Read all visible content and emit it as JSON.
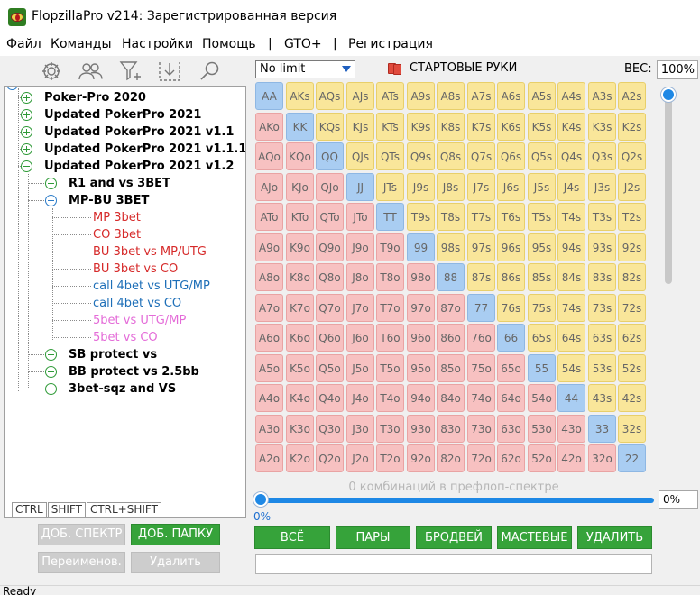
{
  "window": {
    "title": "FlopzillaPro v214: Зарегистрированная версия"
  },
  "menu": [
    "Файл",
    "Команды",
    "Настройки",
    "Помощь",
    "|",
    "GTO+",
    "|",
    "Регистрация"
  ],
  "toolbar_icons": [
    "gear-icon",
    "users-icon",
    "filter-add-icon",
    "import-icon",
    "search-icon"
  ],
  "tree": [
    {
      "label": "Poker-Pro 2020",
      "style": "bold",
      "expander": "plus"
    },
    {
      "label": "Updated PokerPro 2021",
      "style": "bold",
      "expander": "plus"
    },
    {
      "label": "Updated PokerPro 2021 v1.1",
      "style": "bold",
      "expander": "plus"
    },
    {
      "label": "Updated PokerPro 2021 v1.1.1",
      "style": "bold",
      "expander": "plus"
    },
    {
      "label": "Updated PokerPro 2021 v1.2",
      "style": "bold",
      "expander": "minus"
    },
    {
      "label": "R1 and vs 3BET",
      "style": "bold",
      "expander": "plus"
    },
    {
      "label": "MP-BU 3BET",
      "style": "bold",
      "expander": "minus"
    },
    {
      "label": "MP 3bet",
      "style": "red"
    },
    {
      "label": "CO 3bet",
      "style": "red"
    },
    {
      "label": "BU 3bet vs MP/UTG",
      "style": "red"
    },
    {
      "label": "BU 3bet vs CO",
      "style": "red"
    },
    {
      "label": "call 4bet vs UTG/MP",
      "style": "blue"
    },
    {
      "label": "call 4bet vs CO",
      "style": "blue"
    },
    {
      "label": "5bet vs UTG/MP",
      "style": "pink"
    },
    {
      "label": "5bet vs CO",
      "style": "pink"
    },
    {
      "label": "SB protect vs",
      "style": "bold",
      "expander": "plus"
    },
    {
      "label": "BB protect vs 2.5bb",
      "style": "bold",
      "expander": "plus"
    },
    {
      "label": "3bet-sqz and VS",
      "style": "bold",
      "expander": "plus"
    }
  ],
  "modifier_tabs": [
    "CTRL",
    "SHIFT",
    "CTRL+SHIFT"
  ],
  "left_buttons": {
    "add_range": "ДОБ. СПЕКТР",
    "add_folder": "ДОБ. ПАПКУ",
    "rename": "Переименов.",
    "delete": "Удалить"
  },
  "range_type": "No limit",
  "starting_hands_label": "СТАРТОВЫЕ РУКИ",
  "weight": {
    "label": "ВЕС:",
    "value": "100%"
  },
  "hand_grid": {
    "ranks": [
      "A",
      "K",
      "Q",
      "J",
      "T",
      "9",
      "8",
      "7",
      "6",
      "5",
      "4",
      "3",
      "2"
    ],
    "colors": {
      "pair": "#a9cdf2",
      "suited": "#f9e69a",
      "offsuit": "#f7c1c1"
    }
  },
  "combo_text": "0 комбинаций в префлоп-спектре",
  "slider": {
    "min_label": "0%",
    "value": "0%"
  },
  "filter_buttons": [
    "ВСЁ",
    "ПАРЫ",
    "БРОДВЕЙ",
    "МАСТЕВЫЕ",
    "УДАЛИТЬ"
  ],
  "status": "Ready"
}
